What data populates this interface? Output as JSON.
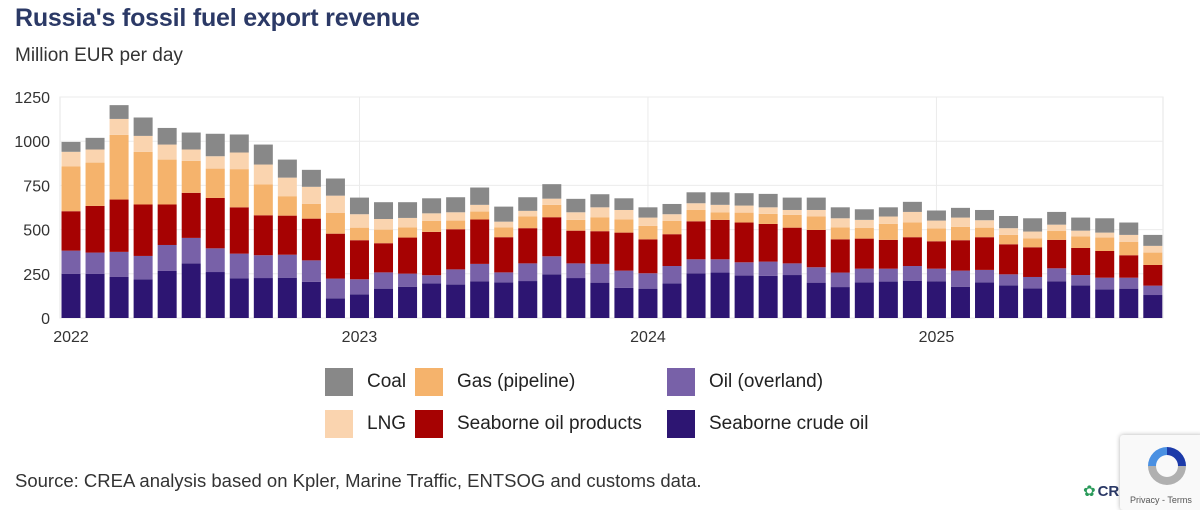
{
  "title": "Russia's fossil fuel export revenue",
  "subtitle": "Million EUR per day",
  "source": "Source: CREA analysis based on Kpler, Marine Traffic, ENTSOG and customs data.",
  "logo_text": "CR",
  "recaptcha": {
    "terms": "Privacy - Terms"
  },
  "chart_data": {
    "type": "bar",
    "stacked": true,
    "title": "Russia's fossil fuel export revenue",
    "ylabel": "Million EUR per day",
    "xlabel": "",
    "ylim": [
      0,
      1250
    ],
    "yticks": [
      "0",
      "250",
      "500",
      "750",
      "1000",
      "1250"
    ],
    "xticks": [
      {
        "label": "2022",
        "index": 0
      },
      {
        "label": "2023",
        "index": 12
      },
      {
        "label": "2024",
        "index": 24
      },
      {
        "label": "2025",
        "index": 36
      }
    ],
    "grid": true,
    "legend_position": "bottom",
    "categories": [
      "2022-01",
      "2022-02",
      "2022-03",
      "2022-04",
      "2022-05",
      "2022-06",
      "2022-07",
      "2022-08",
      "2022-09",
      "2022-10",
      "2022-11",
      "2022-12",
      "2023-01",
      "2023-02",
      "2023-03",
      "2023-04",
      "2023-05",
      "2023-06",
      "2023-07",
      "2023-08",
      "2023-09",
      "2023-10",
      "2023-11",
      "2023-12",
      "2024-01",
      "2024-02",
      "2024-03",
      "2024-04",
      "2024-05",
      "2024-06",
      "2024-07",
      "2024-08",
      "2024-09",
      "2024-10",
      "2024-11",
      "2024-12",
      "2025-01",
      "2025-02",
      "2025-03",
      "2025-04",
      "2025-05",
      "2025-06",
      "2025-07",
      "2025-08",
      "2025-09",
      "2025-10"
    ],
    "series": [
      {
        "name": "Seaborne crude oil",
        "color": "#2d1572",
        "values": [
          249,
          249,
          232,
          219,
          266,
          308,
          260,
          225,
          226,
          228,
          204,
          111,
          134,
          166,
          177,
          196,
          189,
          208,
          202,
          209,
          247,
          226,
          200,
          170,
          166,
          196,
          253,
          257,
          240,
          238,
          243,
          200,
          175,
          202,
          206,
          211,
          208,
          177,
          202,
          185,
          168,
          208,
          185,
          162,
          166,
          130
        ]
      },
      {
        "name": "Oil (overland)",
        "color": "#7861a8",
        "values": [
          132,
          121,
          142,
          132,
          147,
          145,
          134,
          139,
          129,
          130,
          122,
          112,
          85,
          92,
          74,
          46,
          86,
          98,
          56,
          100,
          102,
          83,
          106,
          98,
          87,
          98,
          79,
          75,
          75,
          81,
          66,
          87,
          82,
          77,
          73,
          83,
          71,
          91,
          70,
          62,
          64,
          73,
          58,
          66,
          62,
          53
        ]
      },
      {
        "name": "Seaborne oil products",
        "color": "#a60202",
        "values": [
          223,
          264,
          296,
          291,
          229,
          255,
          285,
          262,
          226,
          221,
          236,
          254,
          221,
          165,
          204,
          245,
          227,
          251,
          199,
          199,
          221,
          185,
          185,
          215,
          192,
          180,
          215,
          223,
          225,
          213,
          202,
          211,
          188,
          170,
          163,
          163,
          155,
          172,
          185,
          170,
          168,
          161,
          153,
          151,
          127,
          117
        ]
      },
      {
        "name": "Gas (pipeline)",
        "color": "#f5b36c",
        "values": [
          253,
          245,
          366,
          298,
          254,
          181,
          166,
          216,
          174,
          110,
          83,
          117,
          71,
          77,
          58,
          62,
          49,
          45,
          56,
          66,
          70,
          61,
          79,
          75,
          76,
          75,
          64,
          43,
          56,
          57,
          72,
          76,
          68,
          60,
          90,
          83,
          72,
          75,
          54,
          53,
          51,
          50,
          66,
          76,
          75,
          70
        ]
      },
      {
        "name": "LNG",
        "color": "#fad4af",
        "values": [
          83,
          74,
          90,
          90,
          85,
          64,
          70,
          94,
          113,
          105,
          97,
          98,
          76,
          60,
          53,
          43,
          47,
          38,
          32,
          32,
          35,
          43,
          56,
          53,
          47,
          38,
          38,
          42,
          40,
          37,
          28,
          37,
          51,
          46,
          42,
          60,
          45,
          53,
          42,
          38,
          38,
          36,
          32,
          28,
          40,
          38
        ]
      },
      {
        "name": "Coal",
        "color": "#888888",
        "values": [
          56,
          66,
          78,
          104,
          94,
          96,
          127,
          102,
          113,
          102,
          96,
          97,
          94,
          95,
          89,
          85,
          85,
          98,
          85,
          77,
          82,
          76,
          74,
          66,
          58,
          58,
          62,
          71,
          70,
          76,
          70,
          70,
          62,
          60,
          52,
          57,
          57,
          55,
          58,
          69,
          75,
          72,
          74,
          81,
          70,
          62
        ]
      }
    ],
    "legend": [
      {
        "name": "Coal",
        "color": "#888888"
      },
      {
        "name": "Gas (pipeline)",
        "color": "#f5b36c"
      },
      {
        "name": "Oil (overland)",
        "color": "#7861a8"
      },
      {
        "name": "LNG",
        "color": "#fad4af"
      },
      {
        "name": "Seaborne oil products",
        "color": "#a60202"
      },
      {
        "name": "Seaborne crude oil",
        "color": "#2d1572"
      }
    ]
  }
}
